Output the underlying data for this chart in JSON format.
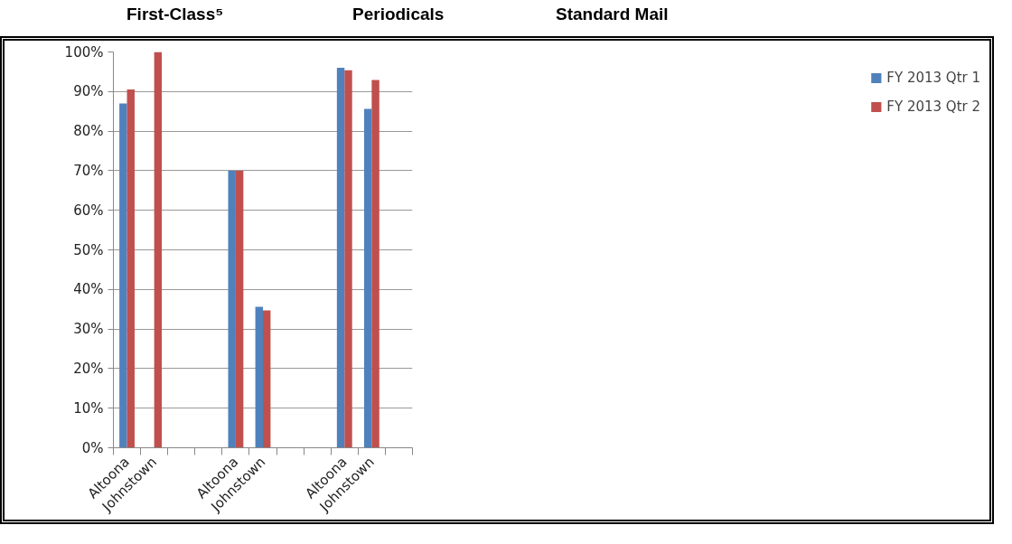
{
  "chart_data": {
    "type": "bar",
    "annotations": [
      "First-Class⁵",
      "Periodicals",
      "Standard Mail"
    ],
    "categories": [
      "Altoona",
      "Johnstown",
      null,
      null,
      "Altoona",
      "Johnstown",
      null,
      null,
      "Altoona",
      "Johnstown",
      null
    ],
    "series": [
      {
        "name": "FY 2013 Qtr 1",
        "color": "#4f81bd",
        "values": [
          87,
          null,
          null,
          null,
          70,
          35.6,
          null,
          null,
          96,
          85.6,
          null
        ]
      },
      {
        "name": "FY 2013 Qtr 2",
        "color": "#c0504d",
        "values": [
          90.5,
          100,
          null,
          null,
          70,
          34.7,
          null,
          null,
          95.4,
          92.9,
          null
        ]
      }
    ],
    "ylim": [
      0,
      100
    ],
    "yticks": [
      {
        "value": 0,
        "label": "0%"
      },
      {
        "value": 10,
        "label": "10%"
      },
      {
        "value": 20,
        "label": "20%"
      },
      {
        "value": 30,
        "label": "30%"
      },
      {
        "value": 40,
        "label": "40%"
      },
      {
        "value": 50,
        "label": "50%"
      },
      {
        "value": 60,
        "label": "60%"
      },
      {
        "value": 70,
        "label": "70%"
      },
      {
        "value": 80,
        "label": "80%"
      },
      {
        "value": 90,
        "label": "90%"
      },
      {
        "value": 100,
        "label": "100%"
      }
    ],
    "grid": "y",
    "legend": "right"
  }
}
